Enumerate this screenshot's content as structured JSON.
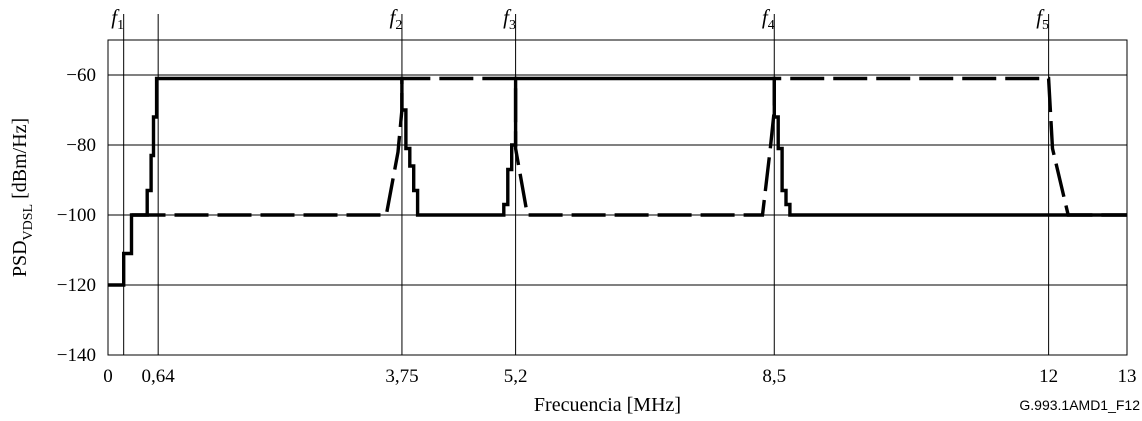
{
  "chart_data": {
    "type": "line",
    "title": "",
    "xlabel": "Frecuencia [MHz]",
    "ylabel": {
      "main": "PSD",
      "sub": "VDSL",
      "unit": " [dBm/Hz]"
    },
    "xlim": [
      0,
      13
    ],
    "ylim": [
      -140,
      -50
    ],
    "x_ticks": [
      {
        "value": 0,
        "label": "0"
      },
      {
        "value": 0.64,
        "label": "0,64"
      },
      {
        "value": 3.75,
        "label": "3,75"
      },
      {
        "value": 5.2,
        "label": "5,2"
      },
      {
        "value": 8.5,
        "label": "8,5"
      },
      {
        "value": 12,
        "label": "12"
      },
      {
        "value": 13,
        "label": "13"
      }
    ],
    "y_ticks": [
      {
        "value": -60,
        "label": "−60"
      },
      {
        "value": -80,
        "label": "−80"
      },
      {
        "value": -100,
        "label": "−100"
      },
      {
        "value": -120,
        "label": "−120"
      },
      {
        "value": -140,
        "label": "−140"
      }
    ],
    "grid": true,
    "freq_markers": [
      {
        "x": 0.2,
        "label": "f",
        "sub": "1"
      },
      {
        "x": 3.75,
        "label": "f",
        "sub": "2"
      },
      {
        "x": 5.2,
        "label": "f",
        "sub": "3"
      },
      {
        "x": 8.5,
        "label": "f",
        "sub": "4"
      },
      {
        "x": 12,
        "label": "f",
        "sub": "5"
      }
    ],
    "series": [
      {
        "style": "solid",
        "points": [
          [
            0,
            -120
          ],
          [
            0.2,
            -120
          ],
          [
            0.2,
            -111
          ],
          [
            0.3,
            -111
          ],
          [
            0.3,
            -100
          ],
          [
            0.5,
            -100
          ],
          [
            0.5,
            -93
          ],
          [
            0.55,
            -93
          ],
          [
            0.55,
            -83
          ],
          [
            0.58,
            -83
          ],
          [
            0.58,
            -72
          ],
          [
            0.62,
            -72
          ],
          [
            0.62,
            -61
          ],
          [
            3.75,
            -61
          ],
          [
            3.75,
            -70
          ],
          [
            3.8,
            -70
          ],
          [
            3.8,
            -81
          ],
          [
            3.85,
            -81
          ],
          [
            3.85,
            -86
          ],
          [
            3.9,
            -86
          ],
          [
            3.9,
            -93
          ],
          [
            3.95,
            -93
          ],
          [
            3.95,
            -100
          ],
          [
            5.05,
            -100
          ],
          [
            5.05,
            -97
          ],
          [
            5.1,
            -97
          ],
          [
            5.1,
            -87
          ],
          [
            5.15,
            -87
          ],
          [
            5.15,
            -80
          ],
          [
            5.2,
            -80
          ],
          [
            5.2,
            -61
          ],
          [
            8.5,
            -61
          ],
          [
            8.5,
            -72
          ],
          [
            8.55,
            -72
          ],
          [
            8.55,
            -81
          ],
          [
            8.6,
            -81
          ],
          [
            8.6,
            -93
          ],
          [
            8.65,
            -93
          ],
          [
            8.65,
            -97
          ],
          [
            8.7,
            -97
          ],
          [
            8.7,
            -100
          ],
          [
            13,
            -100
          ]
        ]
      },
      {
        "style": "dashed",
        "points": [
          [
            0.3,
            -100
          ],
          [
            3.55,
            -100
          ],
          [
            3.7,
            -82
          ],
          [
            3.75,
            -70
          ],
          [
            3.75,
            -61
          ],
          [
            5.2,
            -61
          ],
          [
            5.2,
            -81
          ],
          [
            5.35,
            -100
          ],
          [
            8.35,
            -100
          ],
          [
            8.45,
            -81
          ],
          [
            8.5,
            -70
          ],
          [
            8.5,
            -61
          ],
          [
            12,
            -61
          ],
          [
            12.05,
            -81
          ],
          [
            12.25,
            -100
          ],
          [
            13,
            -100
          ]
        ]
      }
    ],
    "figure_id": "G.993.1AMD1_F12"
  }
}
